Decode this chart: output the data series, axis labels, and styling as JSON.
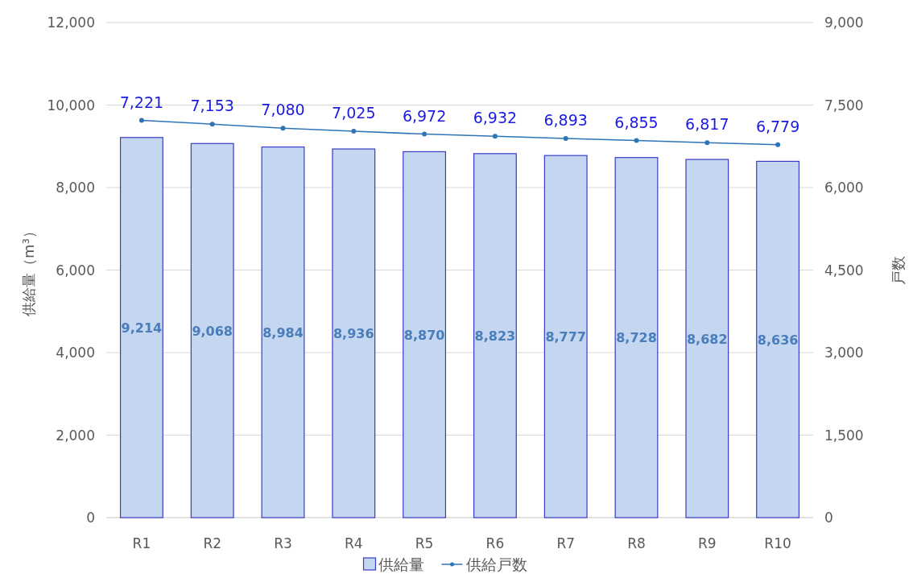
{
  "chart_data": {
    "type": "bar",
    "ylabel": "供給量（m³）",
    "y2label": "戸数",
    "categories": [
      "R1",
      "R2",
      "R3",
      "R4",
      "R5",
      "R6",
      "R7",
      "R8",
      "R9",
      "R10"
    ],
    "series": [
      {
        "name": "供給量",
        "color": "#c5d6f0",
        "values": [
          9214,
          9068,
          8984,
          8936,
          8870,
          8823,
          8777,
          8728,
          8682,
          8636
        ],
        "value_labels": [
          "9,214",
          "9,068",
          "8,984",
          "8,936",
          "8,870",
          "8,823",
          "8,777",
          "8,728",
          "8,682",
          "8,636"
        ]
      },
      {
        "name": "供給戸数",
        "type": "line",
        "axis": "y2",
        "color": "#2e75b6",
        "marker": "circle",
        "values": [
          7221,
          7153,
          7080,
          7025,
          6972,
          6932,
          6893,
          6855,
          6817,
          6779
        ],
        "value_labels": [
          "7,221",
          "7,153",
          "7,080",
          "7,025",
          "6,972",
          "6,932",
          "6,893",
          "6,855",
          "6,817",
          "6,779"
        ]
      }
    ],
    "ylim": [
      0,
      12000
    ],
    "yticks": [
      0,
      {
        "value": 2000,
        "label": "2,000"
      },
      {
        "value": 4000,
        "label": "4,000"
      },
      {
        "value": 6000,
        "label": "6,000"
      },
      {
        "value": 8000,
        "label": "8,000"
      },
      {
        "value": 10000,
        "label": "10,000"
      },
      {
        "value": 12000,
        "label": "12,000"
      }
    ],
    "y2lim": [
      0,
      9000
    ],
    "y2ticks": [
      0,
      {
        "value": 1500,
        "label": "1,500"
      },
      {
        "value": 3000,
        "label": "3,000"
      },
      {
        "value": 4500,
        "label": "4,500"
      },
      {
        "value": 6000,
        "label": "6,000"
      },
      {
        "value": 7500,
        "label": "7,500"
      },
      {
        "value": 9000,
        "label": "9,000"
      }
    ],
    "grid": "y",
    "legend": "bottom"
  }
}
